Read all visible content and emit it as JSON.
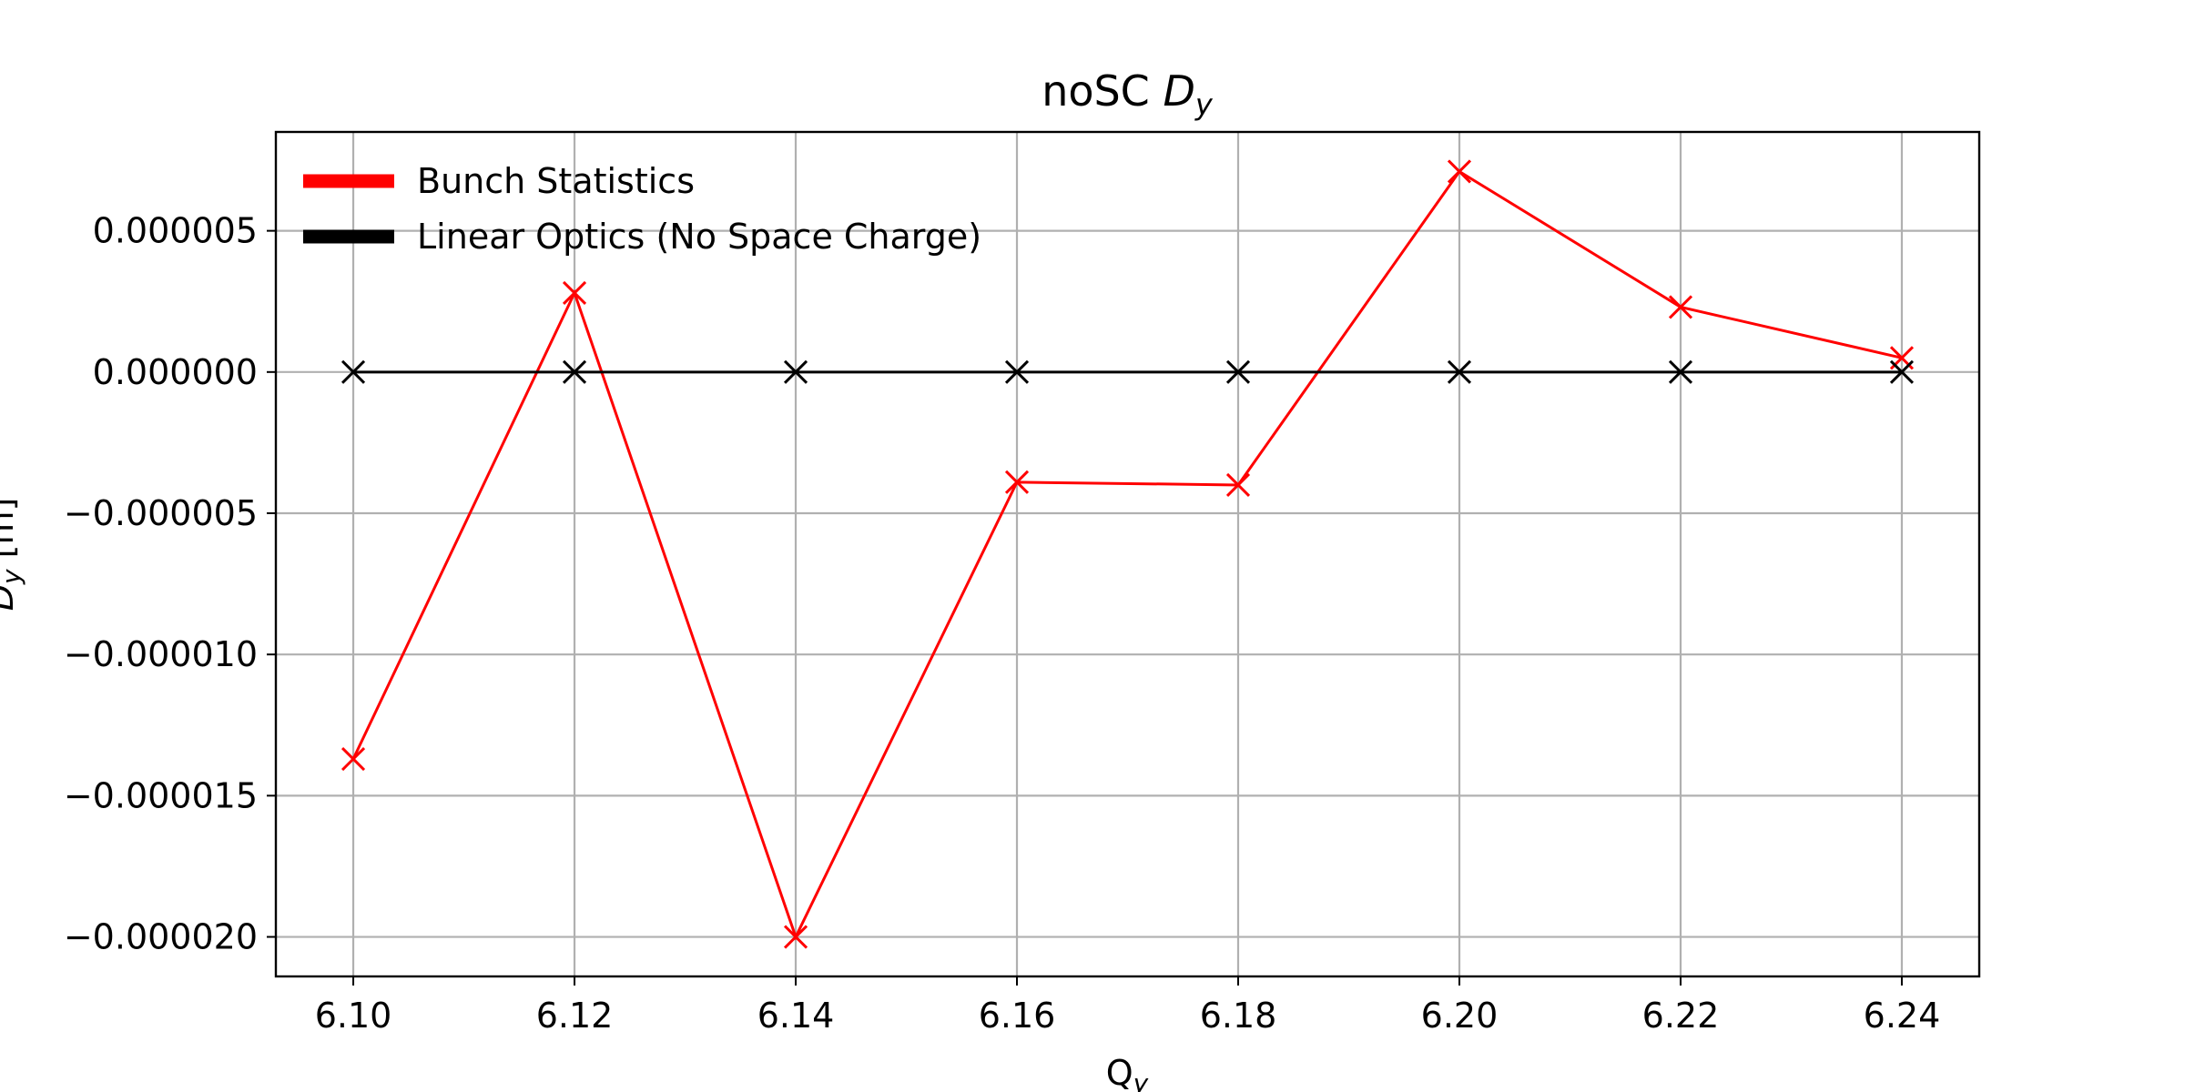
{
  "chart_data": {
    "type": "line",
    "title": "noSC",
    "title_symbol": "D",
    "title_subscript": "y",
    "xlabel": "Q",
    "xlabel_subscript": "y",
    "ylabel": "D",
    "ylabel_subscript": "y",
    "ylabel_unit": " [m]",
    "x": [
      6.1,
      6.12,
      6.14,
      6.16,
      6.18,
      6.2,
      6.22,
      6.24
    ],
    "x_tick_labels": [
      "6.10",
      "6.12",
      "6.14",
      "6.16",
      "6.18",
      "6.20",
      "6.22",
      "6.24"
    ],
    "y_ticks": [
      5e-06,
      0.0,
      -5e-06,
      -1e-05,
      -1.5e-05,
      -2e-05
    ],
    "y_tick_labels": [
      "0.000005",
      "0.000000",
      "−0.000005",
      "−0.000010",
      "−0.000015",
      "−0.000020"
    ],
    "xlim": [
      6.093,
      6.247
    ],
    "ylim": [
      -2.14e-05,
      8.5e-06
    ],
    "grid": true,
    "legend_position": "top-left",
    "series": [
      {
        "name": "Bunch Statistics",
        "color": "#ff0000",
        "marker": "x",
        "values": [
          -1.37e-05,
          2.8e-06,
          -2e-05,
          -3.9e-06,
          -4e-06,
          7.1e-06,
          2.3e-06,
          5e-07
        ]
      },
      {
        "name": "Linear Optics (No Space Charge)",
        "color": "#000000",
        "marker": "x",
        "values": [
          0,
          0,
          0,
          0,
          0,
          0,
          0,
          0
        ]
      }
    ]
  }
}
